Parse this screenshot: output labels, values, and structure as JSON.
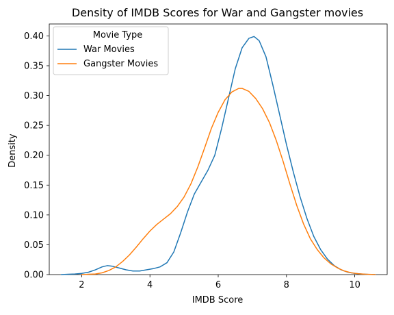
{
  "chart_data": {
    "type": "line",
    "title": "Density of IMDB Scores for War and Gangster movies",
    "xlabel": "IMDB Score",
    "ylabel": "Density",
    "xlim": [
      1.05,
      10.95
    ],
    "ylim": [
      0,
      0.42
    ],
    "xticks": [
      2,
      4,
      6,
      8,
      10
    ],
    "xtick_labels": [
      "2",
      "4",
      "6",
      "8",
      "10"
    ],
    "yticks": [
      0.0,
      0.05,
      0.1,
      0.15,
      0.2,
      0.25,
      0.3,
      0.35,
      0.4
    ],
    "ytick_labels": [
      "0.00",
      "0.05",
      "0.10",
      "0.15",
      "0.20",
      "0.25",
      "0.30",
      "0.35",
      "0.40"
    ],
    "grid": false,
    "legend": {
      "title": "Movie Type",
      "placement": "upper-left"
    },
    "series": [
      {
        "name": "War Movies",
        "color": "#1f77b4",
        "points": [
          [
            1.4,
            0.0
          ],
          [
            1.6,
            0.0005
          ],
          [
            1.8,
            0.001
          ],
          [
            2.0,
            0.002
          ],
          [
            2.2,
            0.004
          ],
          [
            2.4,
            0.008
          ],
          [
            2.6,
            0.013
          ],
          [
            2.75,
            0.015
          ],
          [
            2.9,
            0.014
          ],
          [
            3.1,
            0.011
          ],
          [
            3.3,
            0.008
          ],
          [
            3.5,
            0.006
          ],
          [
            3.7,
            0.006
          ],
          [
            3.9,
            0.008
          ],
          [
            4.1,
            0.01
          ],
          [
            4.3,
            0.013
          ],
          [
            4.5,
            0.02
          ],
          [
            4.7,
            0.038
          ],
          [
            4.9,
            0.07
          ],
          [
            5.1,
            0.105
          ],
          [
            5.3,
            0.135
          ],
          [
            5.5,
            0.155
          ],
          [
            5.7,
            0.175
          ],
          [
            5.9,
            0.2
          ],
          [
            6.1,
            0.245
          ],
          [
            6.3,
            0.295
          ],
          [
            6.5,
            0.345
          ],
          [
            6.7,
            0.38
          ],
          [
            6.9,
            0.396
          ],
          [
            7.05,
            0.399
          ],
          [
            7.2,
            0.392
          ],
          [
            7.4,
            0.365
          ],
          [
            7.6,
            0.318
          ],
          [
            7.8,
            0.268
          ],
          [
            8.0,
            0.218
          ],
          [
            8.2,
            0.172
          ],
          [
            8.4,
            0.13
          ],
          [
            8.6,
            0.094
          ],
          [
            8.8,
            0.064
          ],
          [
            9.0,
            0.042
          ],
          [
            9.2,
            0.026
          ],
          [
            9.4,
            0.015
          ],
          [
            9.6,
            0.008
          ],
          [
            9.8,
            0.004
          ],
          [
            10.0,
            0.002
          ],
          [
            10.2,
            0.001
          ],
          [
            10.4,
            0.0003
          ],
          [
            10.6,
            0.0
          ]
        ]
      },
      {
        "name": "Gangster Movies",
        "color": "#ff7f0e",
        "points": [
          [
            2.0,
            0.0
          ],
          [
            2.2,
            0.0005
          ],
          [
            2.4,
            0.001
          ],
          [
            2.6,
            0.003
          ],
          [
            2.8,
            0.007
          ],
          [
            3.0,
            0.013
          ],
          [
            3.2,
            0.022
          ],
          [
            3.4,
            0.033
          ],
          [
            3.6,
            0.046
          ],
          [
            3.8,
            0.06
          ],
          [
            4.0,
            0.073
          ],
          [
            4.2,
            0.084
          ],
          [
            4.4,
            0.093
          ],
          [
            4.6,
            0.102
          ],
          [
            4.8,
            0.114
          ],
          [
            5.0,
            0.13
          ],
          [
            5.2,
            0.152
          ],
          [
            5.4,
            0.18
          ],
          [
            5.6,
            0.212
          ],
          [
            5.8,
            0.245
          ],
          [
            6.0,
            0.272
          ],
          [
            6.2,
            0.293
          ],
          [
            6.4,
            0.306
          ],
          [
            6.6,
            0.312
          ],
          [
            6.7,
            0.312
          ],
          [
            6.9,
            0.307
          ],
          [
            7.1,
            0.295
          ],
          [
            7.3,
            0.278
          ],
          [
            7.5,
            0.255
          ],
          [
            7.7,
            0.225
          ],
          [
            7.9,
            0.19
          ],
          [
            8.1,
            0.152
          ],
          [
            8.3,
            0.116
          ],
          [
            8.5,
            0.085
          ],
          [
            8.7,
            0.06
          ],
          [
            8.9,
            0.042
          ],
          [
            9.1,
            0.028
          ],
          [
            9.3,
            0.018
          ],
          [
            9.5,
            0.011
          ],
          [
            9.7,
            0.006
          ],
          [
            9.9,
            0.003
          ],
          [
            10.1,
            0.0015
          ],
          [
            10.3,
            0.0007
          ],
          [
            10.6,
            0.0
          ]
        ]
      }
    ]
  }
}
